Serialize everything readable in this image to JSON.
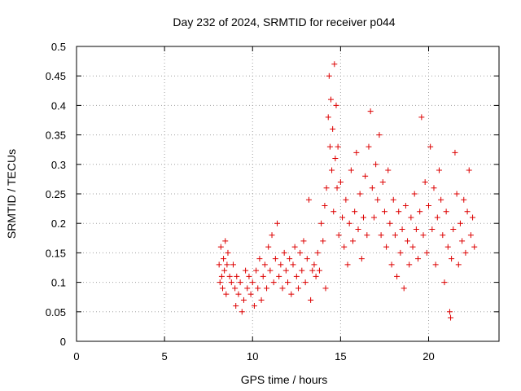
{
  "chart_data": {
    "type": "scatter",
    "title": "Day 232 of 2024, SRMTID for receiver p044",
    "xlabel": "GPS time / hours",
    "ylabel": "SRMTID / TECUs",
    "xlim": [
      0,
      24
    ],
    "ylim": [
      0,
      0.5
    ],
    "xticks": [
      0,
      5,
      10,
      15,
      20
    ],
    "yticks": [
      0,
      0.05,
      0.1,
      0.15,
      0.2,
      0.25,
      0.3,
      0.35,
      0.4,
      0.45,
      0.5
    ],
    "xtick_labels": [
      "0",
      "5",
      "10",
      "15",
      "20"
    ],
    "ytick_labels": [
      "0",
      "0.05",
      "0.1",
      "0.15",
      "0.2",
      "0.25",
      "0.3",
      "0.35",
      "0.4",
      "0.45",
      "0.5"
    ],
    "grid": true,
    "marker": "plus",
    "series": [
      {
        "name": "SRMTID",
        "color": "#dd0000",
        "points": [
          [
            8.1,
            0.13
          ],
          [
            8.15,
            0.1
          ],
          [
            8.2,
            0.16
          ],
          [
            8.25,
            0.11
          ],
          [
            8.3,
            0.09
          ],
          [
            8.35,
            0.14
          ],
          [
            8.4,
            0.12
          ],
          [
            8.45,
            0.17
          ],
          [
            8.5,
            0.08
          ],
          [
            8.55,
            0.13
          ],
          [
            8.6,
            0.15
          ],
          [
            8.7,
            0.11
          ],
          [
            8.8,
            0.1
          ],
          [
            8.9,
            0.13
          ],
          [
            9.0,
            0.09
          ],
          [
            9.05,
            0.06
          ],
          [
            9.1,
            0.11
          ],
          [
            9.2,
            0.08
          ],
          [
            9.3,
            0.1
          ],
          [
            9.4,
            0.05
          ],
          [
            9.5,
            0.07
          ],
          [
            9.6,
            0.12
          ],
          [
            9.7,
            0.09
          ],
          [
            9.8,
            0.11
          ],
          [
            9.9,
            0.08
          ],
          [
            10.0,
            0.1
          ],
          [
            10.1,
            0.06
          ],
          [
            10.2,
            0.12
          ],
          [
            10.3,
            0.09
          ],
          [
            10.4,
            0.14
          ],
          [
            10.5,
            0.07
          ],
          [
            10.6,
            0.11
          ],
          [
            10.7,
            0.13
          ],
          [
            10.8,
            0.09
          ],
          [
            10.9,
            0.16
          ],
          [
            11.0,
            0.12
          ],
          [
            11.1,
            0.18
          ],
          [
            11.2,
            0.1
          ],
          [
            11.3,
            0.14
          ],
          [
            11.4,
            0.2
          ],
          [
            11.5,
            0.11
          ],
          [
            11.6,
            0.13
          ],
          [
            11.7,
            0.09
          ],
          [
            11.8,
            0.15
          ],
          [
            11.9,
            0.12
          ],
          [
            12.0,
            0.1
          ],
          [
            12.1,
            0.14
          ],
          [
            12.2,
            0.08
          ],
          [
            12.3,
            0.13
          ],
          [
            12.4,
            0.16
          ],
          [
            12.5,
            0.11
          ],
          [
            12.6,
            0.09
          ],
          [
            12.7,
            0.15
          ],
          [
            12.8,
            0.12
          ],
          [
            12.9,
            0.17
          ],
          [
            13.0,
            0.1
          ],
          [
            13.1,
            0.14
          ],
          [
            13.2,
            0.24
          ],
          [
            13.3,
            0.07
          ],
          [
            13.4,
            0.12
          ],
          [
            13.5,
            0.13
          ],
          [
            13.6,
            0.11
          ],
          [
            13.7,
            0.15
          ],
          [
            13.8,
            0.12
          ],
          [
            13.9,
            0.2
          ],
          [
            14.0,
            0.17
          ],
          [
            14.1,
            0.23
          ],
          [
            14.15,
            0.09
          ],
          [
            14.2,
            0.26
          ],
          [
            14.3,
            0.38
          ],
          [
            14.35,
            0.45
          ],
          [
            14.4,
            0.33
          ],
          [
            14.45,
            0.41
          ],
          [
            14.5,
            0.29
          ],
          [
            14.55,
            0.36
          ],
          [
            14.6,
            0.22
          ],
          [
            14.65,
            0.47
          ],
          [
            14.7,
            0.31
          ],
          [
            14.75,
            0.4
          ],
          [
            14.8,
            0.26
          ],
          [
            14.85,
            0.33
          ],
          [
            14.9,
            0.18
          ],
          [
            15.0,
            0.27
          ],
          [
            15.1,
            0.21
          ],
          [
            15.2,
            0.16
          ],
          [
            15.3,
            0.24
          ],
          [
            15.4,
            0.13
          ],
          [
            15.5,
            0.2
          ],
          [
            15.6,
            0.29
          ],
          [
            15.7,
            0.17
          ],
          [
            15.8,
            0.22
          ],
          [
            15.9,
            0.32
          ],
          [
            16.0,
            0.19
          ],
          [
            16.1,
            0.25
          ],
          [
            16.2,
            0.14
          ],
          [
            16.3,
            0.21
          ],
          [
            16.4,
            0.28
          ],
          [
            16.5,
            0.18
          ],
          [
            16.6,
            0.33
          ],
          [
            16.7,
            0.39
          ],
          [
            16.8,
            0.26
          ],
          [
            16.9,
            0.21
          ],
          [
            17.0,
            0.3
          ],
          [
            17.1,
            0.24
          ],
          [
            17.2,
            0.35
          ],
          [
            17.3,
            0.18
          ],
          [
            17.4,
            0.27
          ],
          [
            17.5,
            0.22
          ],
          [
            17.6,
            0.16
          ],
          [
            17.7,
            0.29
          ],
          [
            17.8,
            0.2
          ],
          [
            17.9,
            0.13
          ],
          [
            18.0,
            0.24
          ],
          [
            18.1,
            0.18
          ],
          [
            18.2,
            0.11
          ],
          [
            18.3,
            0.22
          ],
          [
            18.4,
            0.15
          ],
          [
            18.5,
            0.19
          ],
          [
            18.6,
            0.09
          ],
          [
            18.7,
            0.23
          ],
          [
            18.8,
            0.17
          ],
          [
            18.9,
            0.13
          ],
          [
            19.0,
            0.21
          ],
          [
            19.1,
            0.16
          ],
          [
            19.2,
            0.25
          ],
          [
            19.3,
            0.19
          ],
          [
            19.4,
            0.14
          ],
          [
            19.5,
            0.22
          ],
          [
            19.6,
            0.38
          ],
          [
            19.7,
            0.18
          ],
          [
            19.8,
            0.27
          ],
          [
            19.9,
            0.15
          ],
          [
            20.0,
            0.23
          ],
          [
            20.1,
            0.33
          ],
          [
            20.2,
            0.19
          ],
          [
            20.3,
            0.26
          ],
          [
            20.4,
            0.13
          ],
          [
            20.5,
            0.21
          ],
          [
            20.6,
            0.29
          ],
          [
            20.7,
            0.24
          ],
          [
            20.8,
            0.18
          ],
          [
            20.9,
            0.1
          ],
          [
            21.0,
            0.22
          ],
          [
            21.1,
            0.16
          ],
          [
            21.2,
            0.05
          ],
          [
            21.25,
            0.04
          ],
          [
            21.3,
            0.14
          ],
          [
            21.4,
            0.19
          ],
          [
            21.5,
            0.32
          ],
          [
            21.6,
            0.25
          ],
          [
            21.7,
            0.13
          ],
          [
            21.8,
            0.2
          ],
          [
            21.9,
            0.17
          ],
          [
            22.0,
            0.24
          ],
          [
            22.1,
            0.15
          ],
          [
            22.2,
            0.22
          ],
          [
            22.3,
            0.29
          ],
          [
            22.4,
            0.18
          ],
          [
            22.5,
            0.21
          ],
          [
            22.6,
            0.16
          ]
        ]
      }
    ]
  }
}
